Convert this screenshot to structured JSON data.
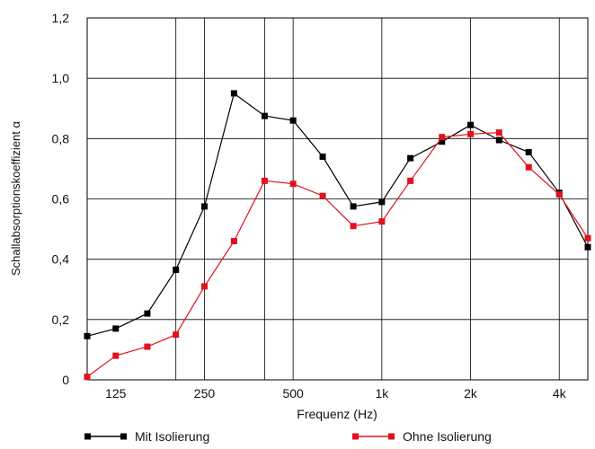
{
  "chart_data": {
    "type": "line",
    "xlabel": "Frequenz (Hz)",
    "ylabel": "Schallabsorptionskoeffizient α",
    "x_scale": "log",
    "ylim": [
      0,
      1.2
    ],
    "xlim": [
      100,
      5000
    ],
    "grid": true,
    "legend_position": "bottom",
    "y_ticks": [
      {
        "value": 0,
        "label": "0"
      },
      {
        "value": 0.2,
        "label": "0,2"
      },
      {
        "value": 0.4,
        "label": "0,4"
      },
      {
        "value": 0.6,
        "label": "0,6"
      },
      {
        "value": 0.8,
        "label": "0,8"
      },
      {
        "value": 1.0,
        "label": "1,0"
      },
      {
        "value": 1.2,
        "label": "1,2"
      }
    ],
    "x_ticks": [
      {
        "value": 125,
        "label": "125"
      },
      {
        "value": 250,
        "label": "250"
      },
      {
        "value": 500,
        "label": "500"
      },
      {
        "value": 1000,
        "label": "1k"
      },
      {
        "value": 2000,
        "label": "2k"
      },
      {
        "value": 4000,
        "label": "4k"
      }
    ],
    "x_gridlines": [
      100,
      200,
      250,
      400,
      500,
      1000,
      2000,
      4000,
      5000
    ],
    "series": [
      {
        "name": "Mit Isolierung",
        "color": "#000000",
        "points": [
          {
            "x": 100,
            "y": 0.145
          },
          {
            "x": 125,
            "y": 0.17
          },
          {
            "x": 160,
            "y": 0.22
          },
          {
            "x": 200,
            "y": 0.365
          },
          {
            "x": 250,
            "y": 0.575
          },
          {
            "x": 315,
            "y": 0.95
          },
          {
            "x": 400,
            "y": 0.875
          },
          {
            "x": 500,
            "y": 0.86
          },
          {
            "x": 630,
            "y": 0.74
          },
          {
            "x": 800,
            "y": 0.575
          },
          {
            "x": 1000,
            "y": 0.59
          },
          {
            "x": 1250,
            "y": 0.735
          },
          {
            "x": 1600,
            "y": 0.79
          },
          {
            "x": 2000,
            "y": 0.845
          },
          {
            "x": 2500,
            "y": 0.795
          },
          {
            "x": 3150,
            "y": 0.755
          },
          {
            "x": 4000,
            "y": 0.62
          },
          {
            "x": 5000,
            "y": 0.44
          }
        ]
      },
      {
        "name": "Ohne Isolierung",
        "color": "#e0121d",
        "points": [
          {
            "x": 100,
            "y": 0.01
          },
          {
            "x": 125,
            "y": 0.08
          },
          {
            "x": 160,
            "y": 0.11
          },
          {
            "x": 200,
            "y": 0.15
          },
          {
            "x": 250,
            "y": 0.31
          },
          {
            "x": 315,
            "y": 0.46
          },
          {
            "x": 400,
            "y": 0.66
          },
          {
            "x": 500,
            "y": 0.65
          },
          {
            "x": 630,
            "y": 0.61
          },
          {
            "x": 800,
            "y": 0.51
          },
          {
            "x": 1000,
            "y": 0.525
          },
          {
            "x": 1250,
            "y": 0.66
          },
          {
            "x": 1600,
            "y": 0.805
          },
          {
            "x": 2000,
            "y": 0.815
          },
          {
            "x": 2500,
            "y": 0.82
          },
          {
            "x": 3150,
            "y": 0.705
          },
          {
            "x": 4000,
            "y": 0.615
          },
          {
            "x": 5000,
            "y": 0.47
          }
        ]
      }
    ]
  }
}
